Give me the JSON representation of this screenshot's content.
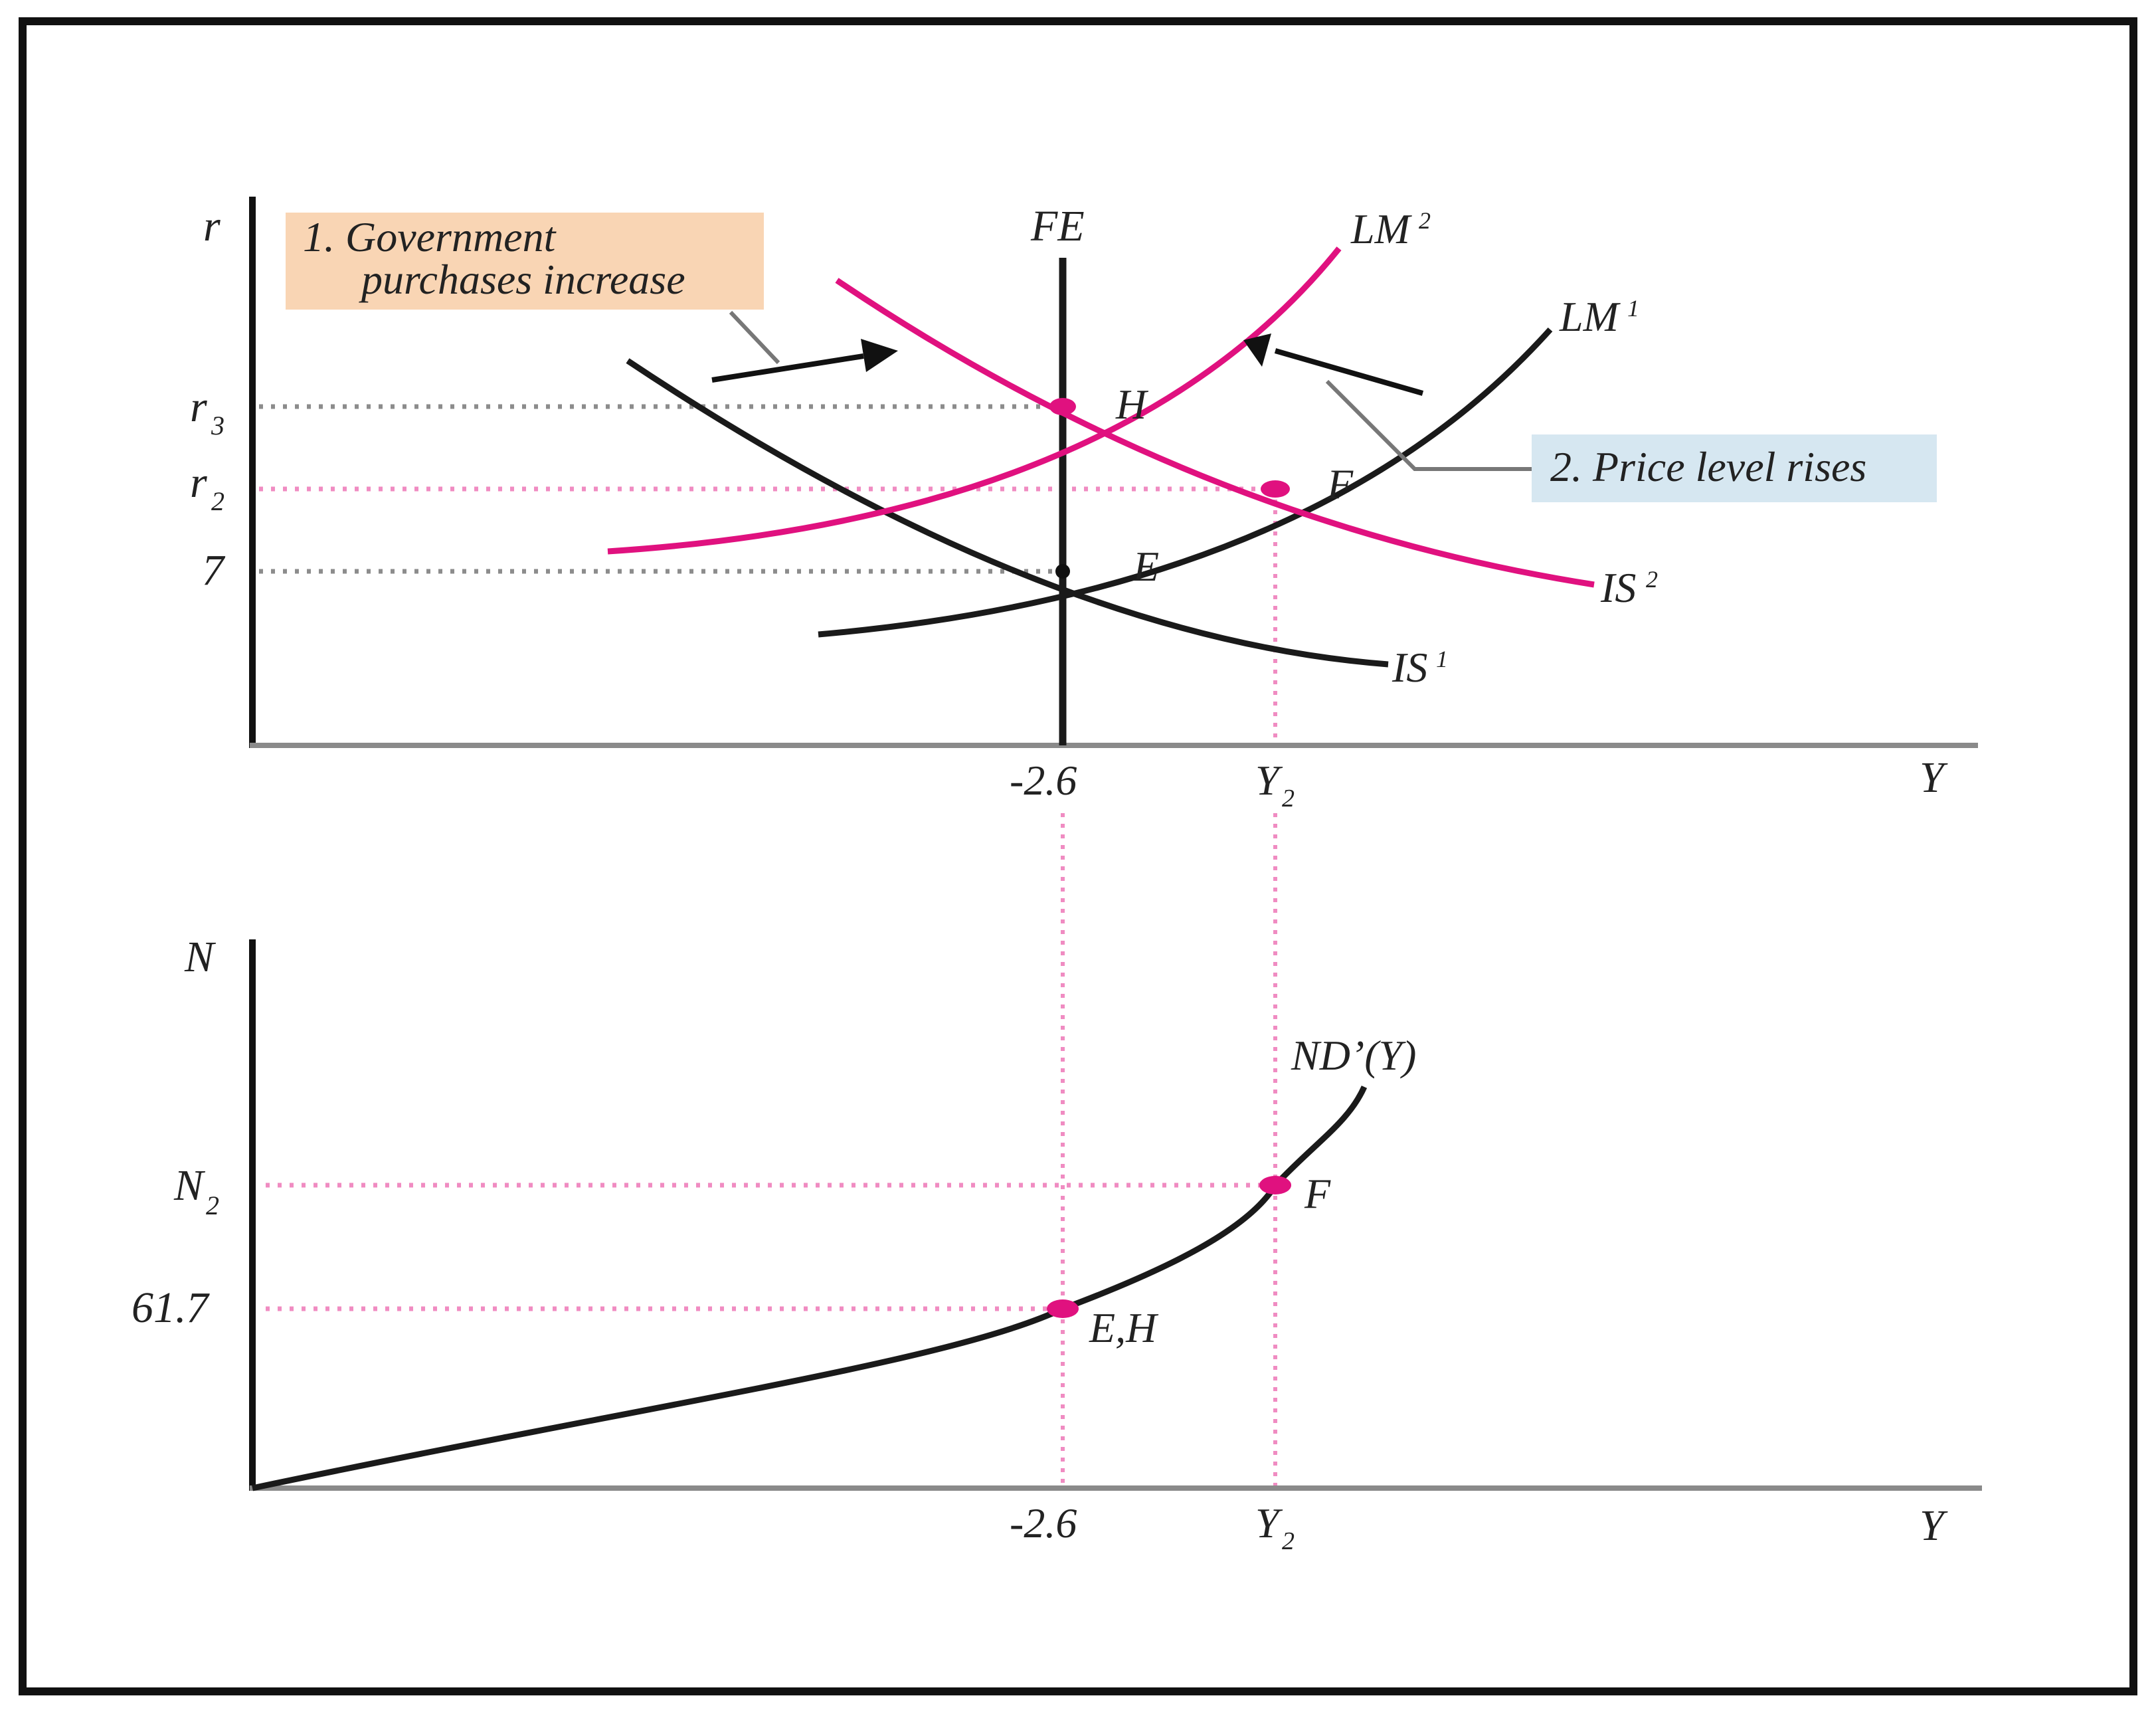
{
  "colors": {
    "frame": "#000000",
    "curve_black": "#1a1a1a",
    "curve_pink": "#e0117f",
    "guide_gray": "#8c8c8c",
    "guide_pink": "#f08cc2",
    "callout1_bg": "#f9d5b4",
    "callout2_bg": "#d6e7f1",
    "axis_gray": "#8a8a8a"
  },
  "top_panel": {
    "y_axis_label": "r",
    "x_axis_label": "Y",
    "y_ticks": {
      "r3": "r",
      "r3_sub": "3",
      "r2": "r",
      "r2_sub": "2",
      "seven": "7"
    },
    "x_ticks": {
      "left": "-2.6",
      "right": "Y",
      "right_sub": "2"
    },
    "curves": {
      "fe": "FE",
      "lm2": "LM",
      "lm2_sup": "2",
      "lm1": "LM",
      "lm1_sup": "1",
      "is2": "IS",
      "is2_sup": "2",
      "is1": "IS",
      "is1_sup": "1"
    },
    "points": {
      "h": "H",
      "f": "F",
      "e": "E"
    },
    "callout_1_line1": "1. Government",
    "callout_1_line2": "purchases increase",
    "callout_2": "2. Price level rises"
  },
  "bottom_panel": {
    "y_axis_label": "N",
    "x_axis_label": "Y",
    "y_ticks": {
      "n2": "N",
      "n2_sub": "2",
      "val": "61.7"
    },
    "x_ticks": {
      "left": "-2.6",
      "right": "Y",
      "right_sub": "2"
    },
    "curve_label": "ND’(Y)",
    "points": {
      "f": "F",
      "eh": "E,H"
    }
  }
}
